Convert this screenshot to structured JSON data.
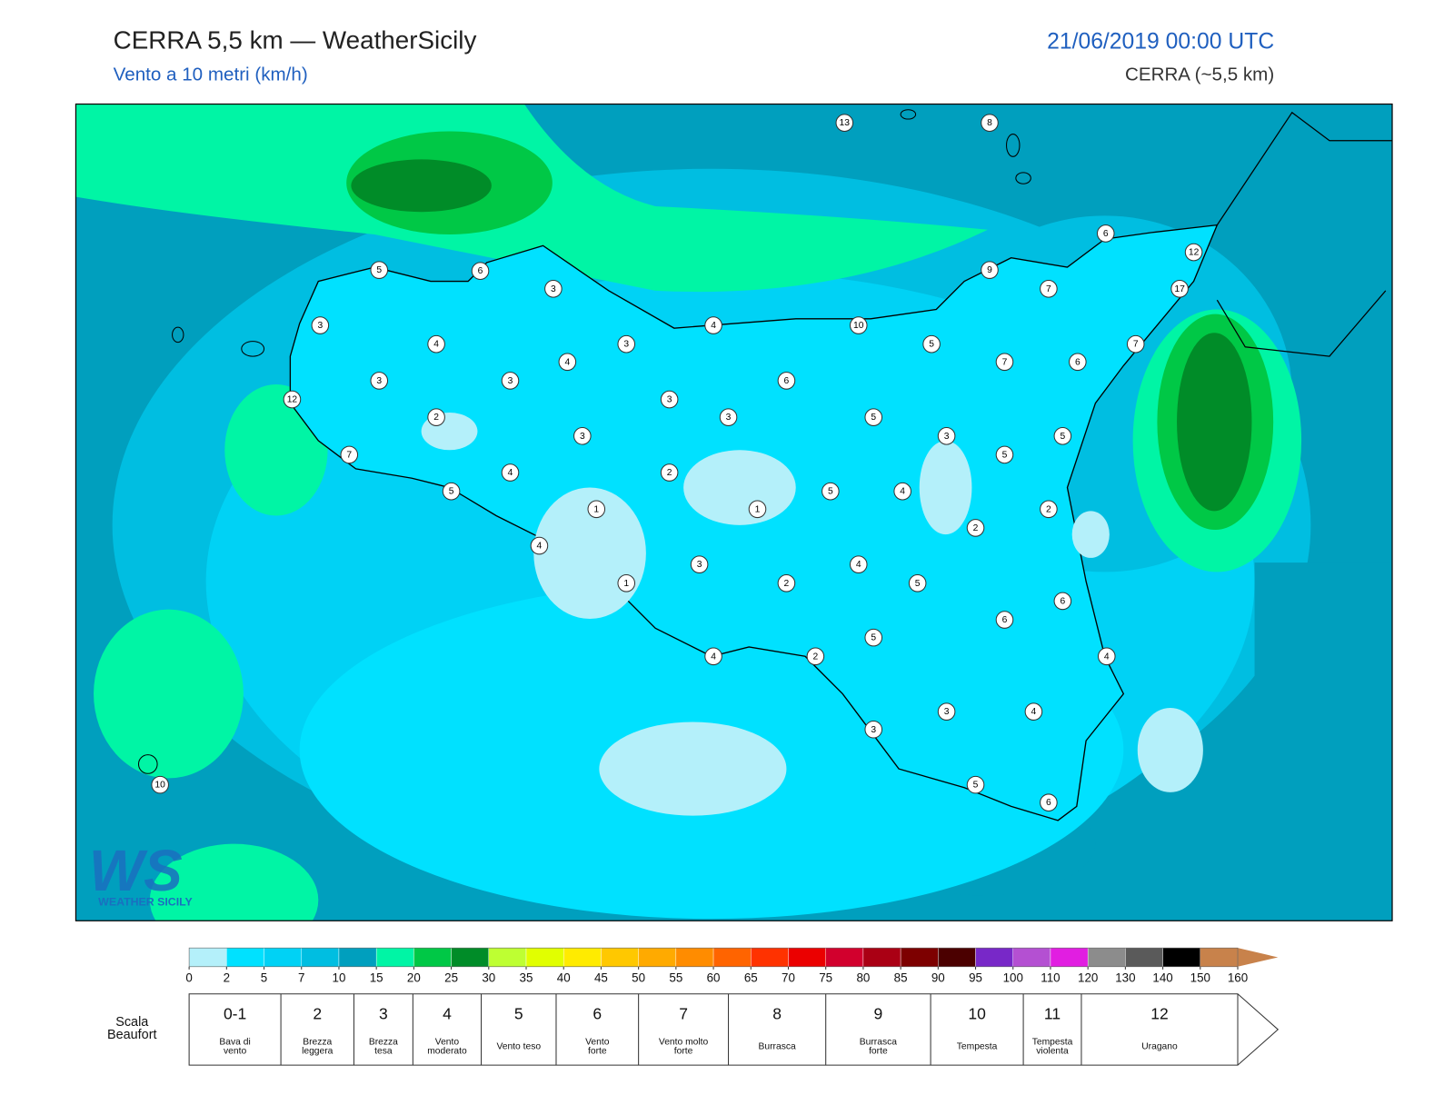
{
  "header": {
    "title": "CERRA 5,5 km — WeatherSicily",
    "subtitle": "Vento a 10 metri (km/h)",
    "datetime": "21/06/2019 00:00 UTC",
    "model": "CERRA (~5,5 km)"
  },
  "stations": {
    "values": [
      13,
      8,
      6,
      12,
      17,
      5,
      6,
      3,
      9,
      7,
      3,
      4,
      3,
      4,
      10,
      5,
      7,
      4,
      7,
      6,
      3,
      3,
      6,
      12,
      3,
      3,
      5,
      2,
      3,
      3,
      5,
      7,
      5,
      4,
      2,
      5,
      5,
      4,
      1,
      1,
      2,
      2,
      4,
      3,
      4,
      1,
      2,
      5,
      6,
      6,
      5,
      4,
      2,
      4,
      3,
      4,
      3,
      5,
      6,
      10
    ]
  },
  "logo": {
    "mark": "WS",
    "name": "WEATHER SICILY"
  },
  "colorbar": {
    "bins": [
      0,
      2,
      5,
      7,
      10,
      15,
      20,
      25,
      30,
      35,
      40,
      45,
      50,
      55,
      60,
      65,
      70,
      75,
      80,
      85,
      90,
      95,
      100,
      110,
      120,
      130,
      140,
      150,
      160
    ],
    "colors": [
      "#b4f0fa",
      "#00e1ff",
      "#00d2f5",
      "#00bee1",
      "#009fbe",
      "#00f5a5",
      "#00c846",
      "#008c28",
      "#beff32",
      "#e1ff00",
      "#ffeb00",
      "#ffc800",
      "#ffaa00",
      "#ff8c00",
      "#ff6400",
      "#ff3200",
      "#eb0000",
      "#d2002d",
      "#aa0014",
      "#7d0000",
      "#4b0000",
      "#7828c8",
      "#b450d2",
      "#e11ee1",
      "#8c8c8c",
      "#5a5a5a",
      "#000000",
      "#8b4b2b",
      "#c8824b"
    ]
  },
  "beaufort": {
    "label": [
      "Scala",
      "Beaufort"
    ],
    "levels": [
      {
        "force": "0-1",
        "description": [
          "Bava di",
          "vento"
        ]
      },
      {
        "force": 2,
        "description": [
          "Brezza",
          "leggera"
        ]
      },
      {
        "force": 3,
        "description": [
          "Brezza",
          "tesa"
        ]
      },
      {
        "force": 4,
        "description": [
          "Vento",
          "moderato"
        ]
      },
      {
        "force": 5,
        "description": [
          "Vento teso"
        ]
      },
      {
        "force": 6,
        "description": [
          "Vento",
          "forte"
        ]
      },
      {
        "force": 7,
        "description": [
          "Vento molto",
          "forte"
        ]
      },
      {
        "force": 8,
        "description": [
          "Burrasca"
        ]
      },
      {
        "force": 9,
        "description": [
          "Burrasca",
          "forte"
        ]
      },
      {
        "force": 10,
        "description": [
          "Tempesta"
        ]
      },
      {
        "force": 11,
        "description": [
          "Tempesta",
          "violenta"
        ]
      },
      {
        "force": 12,
        "description": [
          "Uragano"
        ]
      }
    ]
  }
}
